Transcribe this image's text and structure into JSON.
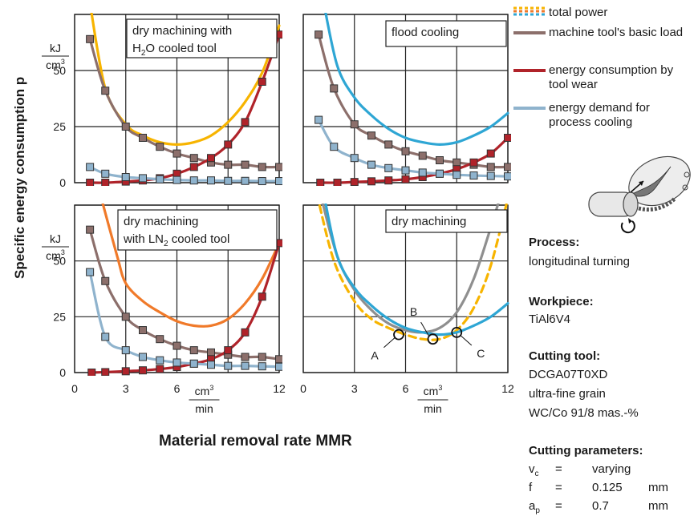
{
  "figure": {
    "y_axis_label": "Specific energy consumption p",
    "x_axis_label": "Material removal rate MMR",
    "y_unit_num": "kJ",
    "y_unit_den": "cm",
    "x_unit_num": "cm",
    "x_unit_den": "min",
    "unit_exp": "3"
  },
  "legend": [
    {
      "label": "total power",
      "color": "#f7b400",
      "style": "multicolor"
    },
    {
      "label": "machine tool's basic load",
      "color": "#8c6f6b"
    },
    {
      "label": "energy consumption by tool wear",
      "color": "#b0232a"
    },
    {
      "label": "energy demand for process cooling",
      "color": "#8fb3cd"
    }
  ],
  "sidebar": {
    "process_label": "Process:",
    "process_value": "longitudinal turning",
    "workpiece_label": "Workpiece:",
    "workpiece_value": "TiAl6V4",
    "tool_label": "Cutting tool:",
    "tool_lines": [
      "DCGA07T0XD",
      "ultra-fine grain",
      "WC/Co 91/8 mas.-%"
    ],
    "params_label": "Cutting parameters:",
    "params": [
      {
        "sym": "v",
        "sub": "c",
        "eq": "=",
        "val": "varying",
        "unit": ""
      },
      {
        "sym": "f",
        "sub": "",
        "eq": "=",
        "val": "0.125",
        "unit": "mm"
      },
      {
        "sym": "a",
        "sub": "p",
        "eq": "=",
        "val": "0.7",
        "unit": "mm"
      }
    ]
  },
  "chart_data": [
    {
      "type": "line",
      "title": "dry machining with H2O cooled tool",
      "xlim": [
        0,
        12
      ],
      "ylim": [
        0,
        75
      ],
      "xticks": [
        "0",
        "3",
        "6",
        "9",
        "12"
      ],
      "yticks": [
        "0",
        "25",
        "50"
      ],
      "series": [
        {
          "name": "total power",
          "color": "#f7b400",
          "points": [
            [
              0.9,
              80
            ],
            [
              1.8,
              42
            ],
            [
              3,
              26
            ],
            [
              4,
              21
            ],
            [
              5,
              18
            ],
            [
              6,
              17
            ],
            [
              7,
              18
            ],
            [
              8,
              21
            ],
            [
              9,
              27
            ],
            [
              10,
              36
            ],
            [
              11,
              49
            ],
            [
              12,
              70
            ]
          ]
        },
        {
          "name": "machine tool's basic load",
          "color": "#8c6f6b",
          "points": [
            [
              0.9,
              64
            ],
            [
              1.8,
              41
            ],
            [
              3,
              25
            ],
            [
              4,
              20
            ],
            [
              5,
              16
            ],
            [
              6,
              13
            ],
            [
              7,
              11
            ],
            [
              8,
              9
            ],
            [
              9,
              8
            ],
            [
              10,
              8
            ],
            [
              11,
              7
            ],
            [
              12,
              7
            ]
          ]
        },
        {
          "name": "energy consumption by tool wear",
          "color": "#b0232a",
          "points": [
            [
              0.9,
              0
            ],
            [
              1.8,
              0
            ],
            [
              3,
              0.5
            ],
            [
              4,
              1
            ],
            [
              5,
              2
            ],
            [
              6,
              4
            ],
            [
              7,
              7
            ],
            [
              8,
              11
            ],
            [
              9,
              17
            ],
            [
              10,
              27
            ],
            [
              11,
              45
            ],
            [
              12,
              66
            ]
          ]
        },
        {
          "name": "energy demand for process cooling",
          "color": "#8fb3cd",
          "points": [
            [
              0.9,
              7
            ],
            [
              1.8,
              4
            ],
            [
              3,
              2.5
            ],
            [
              4,
              2
            ],
            [
              5,
              1.5
            ],
            [
              6,
              1.2
            ],
            [
              7,
              1
            ],
            [
              8,
              1
            ],
            [
              9,
              0.8
            ],
            [
              10,
              0.8
            ],
            [
              11,
              0.7
            ],
            [
              12,
              0.7
            ]
          ]
        }
      ]
    },
    {
      "type": "line",
      "title": "flood cooling",
      "xlim": [
        0,
        12
      ],
      "ylim": [
        0,
        75
      ],
      "series": [
        {
          "name": "total power",
          "color": "#2ea6d4",
          "points": [
            [
              1.2,
              80
            ],
            [
              2,
              52
            ],
            [
              3,
              38
            ],
            [
              4,
              30
            ],
            [
              5,
              24
            ],
            [
              6,
              20
            ],
            [
              7,
              18
            ],
            [
              8,
              17
            ],
            [
              9,
              18
            ],
            [
              10,
              21
            ],
            [
              11,
              25
            ],
            [
              12,
              31
            ]
          ]
        },
        {
          "name": "machine tool's basic load",
          "color": "#8c6f6b",
          "points": [
            [
              0.9,
              66
            ],
            [
              1.8,
              42
            ],
            [
              3,
              26
            ],
            [
              4,
              21
            ],
            [
              5,
              17
            ],
            [
              6,
              14
            ],
            [
              7,
              12
            ],
            [
              8,
              10
            ],
            [
              9,
              9
            ],
            [
              10,
              8
            ],
            [
              11,
              7
            ],
            [
              12,
              7
            ]
          ]
        },
        {
          "name": "energy consumption by tool wear",
          "color": "#b0232a",
          "points": [
            [
              1,
              0
            ],
            [
              2,
              0
            ],
            [
              3,
              0.3
            ],
            [
              4,
              0.6
            ],
            [
              5,
              1
            ],
            [
              6,
              1.5
            ],
            [
              7,
              2.5
            ],
            [
              8,
              4
            ],
            [
              9,
              6
            ],
            [
              10,
              9
            ],
            [
              11,
              13
            ],
            [
              12,
              20
            ]
          ]
        },
        {
          "name": "energy demand for process cooling",
          "color": "#8fb3cd",
          "points": [
            [
              0.9,
              28
            ],
            [
              1.8,
              16
            ],
            [
              3,
              11
            ],
            [
              4,
              8
            ],
            [
              5,
              6.5
            ],
            [
              6,
              5.5
            ],
            [
              7,
              4.5
            ],
            [
              8,
              4
            ],
            [
              9,
              3.5
            ],
            [
              10,
              3.2
            ],
            [
              11,
              3
            ],
            [
              12,
              2.8
            ]
          ]
        }
      ]
    },
    {
      "type": "line",
      "title": "dry machining with LN2 cooled tool",
      "xlim": [
        0,
        12
      ],
      "ylim": [
        0,
        75
      ],
      "xticks": [
        "0",
        "3",
        "6",
        "9",
        "12"
      ],
      "yticks": [
        "0",
        "25",
        "50"
      ],
      "series": [
        {
          "name": "total power",
          "color": "#f07a2a",
          "points": [
            [
              1.5,
              80
            ],
            [
              2.5,
              52
            ],
            [
              3,
              40
            ],
            [
              4,
              32
            ],
            [
              5,
              27
            ],
            [
              6,
              23
            ],
            [
              7,
              21
            ],
            [
              8,
              21
            ],
            [
              9,
              24
            ],
            [
              10,
              31
            ],
            [
              11,
              42
            ],
            [
              12,
              58
            ]
          ]
        },
        {
          "name": "machine tool's basic load",
          "color": "#8c6f6b",
          "points": [
            [
              0.9,
              64
            ],
            [
              1.8,
              41
            ],
            [
              3,
              25
            ],
            [
              4,
              19
            ],
            [
              5,
              15
            ],
            [
              6,
              12
            ],
            [
              7,
              10
            ],
            [
              8,
              9
            ],
            [
              9,
              8
            ],
            [
              10,
              7
            ],
            [
              11,
              7
            ],
            [
              12,
              6
            ]
          ]
        },
        {
          "name": "energy consumption by tool wear",
          "color": "#b0232a",
          "points": [
            [
              1,
              0
            ],
            [
              1.8,
              0.2
            ],
            [
              3,
              0.6
            ],
            [
              4,
              1
            ],
            [
              5,
              1.6
            ],
            [
              6,
              2.5
            ],
            [
              7,
              4
            ],
            [
              8,
              6
            ],
            [
              9,
              10
            ],
            [
              10,
              18
            ],
            [
              11,
              34
            ],
            [
              12,
              58
            ]
          ]
        },
        {
          "name": "energy demand for process cooling",
          "color": "#8fb3cd",
          "points": [
            [
              0.9,
              45
            ],
            [
              1.8,
              16
            ],
            [
              3,
              10
            ],
            [
              4,
              7
            ],
            [
              5,
              5.5
            ],
            [
              6,
              4.5
            ],
            [
              7,
              4
            ],
            [
              8,
              3.5
            ],
            [
              9,
              3
            ],
            [
              10,
              3
            ],
            [
              11,
              2.8
            ],
            [
              12,
              2.6
            ]
          ]
        }
      ]
    },
    {
      "type": "line",
      "title": "dry machining",
      "xlim": [
        0,
        12
      ],
      "ylim": [
        0,
        75
      ],
      "xticks": [
        "0",
        "3",
        "6",
        "9",
        "12"
      ],
      "series": [
        {
          "color": "#8f8f8f",
          "style": "solid",
          "points": [
            [
              1,
              80
            ],
            [
              2,
              52
            ],
            [
              3,
              37
            ],
            [
              4,
              28
            ],
            [
              5,
              22
            ],
            [
              6,
              19
            ],
            [
              7,
              18
            ],
            [
              8,
              20
            ],
            [
              9,
              27
            ],
            [
              10,
              42
            ],
            [
              11,
              65
            ],
            [
              12,
              90
            ]
          ]
        },
        {
          "color": "#f7b400",
          "style": "dashed",
          "points": [
            [
              0.8,
              80
            ],
            [
              1.8,
              50
            ],
            [
              3,
              32
            ],
            [
              4,
              24
            ],
            [
              5,
              20
            ],
            [
              6,
              17
            ],
            [
              7,
              15
            ],
            [
              8,
              15
            ],
            [
              9,
              19
            ],
            [
              10,
              29
            ],
            [
              11,
              48
            ],
            [
              12,
              78
            ]
          ]
        },
        {
          "color": "#2ea6d4",
          "style": "solid",
          "points": [
            [
              1.2,
              80
            ],
            [
              2,
              52
            ],
            [
              3,
              38
            ],
            [
              4,
              30
            ],
            [
              5,
              24
            ],
            [
              6,
              20
            ],
            [
              7,
              18
            ],
            [
              8,
              17
            ],
            [
              9,
              18
            ],
            [
              10,
              21
            ],
            [
              11,
              25
            ],
            [
              12,
              31
            ]
          ]
        }
      ],
      "annotations": [
        {
          "label": "A",
          "x": 5.6,
          "y": 17
        },
        {
          "label": "B",
          "x": 7.6,
          "y": 15
        },
        {
          "label": "C",
          "x": 9,
          "y": 18
        }
      ]
    }
  ]
}
